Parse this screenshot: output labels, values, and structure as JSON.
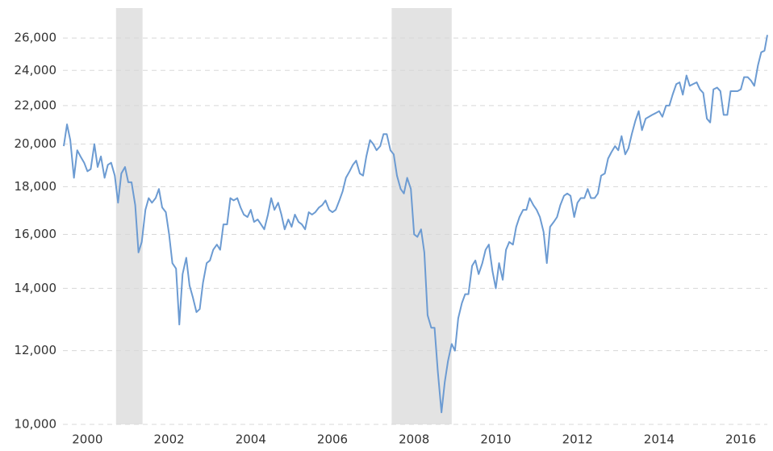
{
  "chart_data": {
    "type": "line",
    "color": "#6c9bd2",
    "log_scale": true,
    "grid": true,
    "shaded_ranges": [
      [
        2000.7,
        2001.35
      ],
      [
        2007.45,
        2008.92
      ]
    ],
    "xlim": [
      1999.4,
      2016.65
    ],
    "xticks": [
      2000,
      2002,
      2004,
      2006,
      2008,
      2010,
      2012,
      2014,
      2016
    ],
    "ylim": [
      10000,
      28000
    ],
    "yticks": [
      {
        "value": 10000,
        "label": "10,000"
      },
      {
        "value": 12000,
        "label": "12,000"
      },
      {
        "value": 14000,
        "label": "14,000"
      },
      {
        "value": 16000,
        "label": "16,000"
      },
      {
        "value": 18000,
        "label": "18,000"
      },
      {
        "value": 20000,
        "label": "20,000"
      },
      {
        "value": 22000,
        "label": "22,000"
      },
      {
        "value": 24000,
        "label": "24,000"
      },
      {
        "value": 26000,
        "label": "26,000"
      }
    ],
    "x": [
      1999.42,
      1999.5,
      1999.58,
      1999.67,
      1999.75,
      1999.83,
      1999.92,
      2000.0,
      2000.08,
      2000.17,
      2000.25,
      2000.33,
      2000.42,
      2000.5,
      2000.58,
      2000.67,
      2000.75,
      2000.83,
      2000.92,
      2001.0,
      2001.08,
      2001.17,
      2001.25,
      2001.33,
      2001.42,
      2001.5,
      2001.58,
      2001.67,
      2001.75,
      2001.83,
      2001.92,
      2002.0,
      2002.08,
      2002.17,
      2002.25,
      2002.33,
      2002.42,
      2002.5,
      2002.58,
      2002.67,
      2002.75,
      2002.83,
      2002.92,
      2003.0,
      2003.08,
      2003.17,
      2003.25,
      2003.33,
      2003.42,
      2003.5,
      2003.58,
      2003.67,
      2003.75,
      2003.83,
      2003.92,
      2004.0,
      2004.08,
      2004.17,
      2004.25,
      2004.33,
      2004.42,
      2004.5,
      2004.58,
      2004.67,
      2004.75,
      2004.83,
      2004.92,
      2005.0,
      2005.08,
      2005.17,
      2005.25,
      2005.33,
      2005.42,
      2005.5,
      2005.58,
      2005.67,
      2005.75,
      2005.83,
      2005.92,
      2006.0,
      2006.08,
      2006.17,
      2006.25,
      2006.33,
      2006.42,
      2006.5,
      2006.58,
      2006.67,
      2006.75,
      2006.83,
      2006.92,
      2007.0,
      2007.08,
      2007.17,
      2007.25,
      2007.33,
      2007.42,
      2007.5,
      2007.58,
      2007.67,
      2007.75,
      2007.83,
      2007.92,
      2008.0,
      2008.08,
      2008.17,
      2008.25,
      2008.33,
      2008.42,
      2008.5,
      2008.58,
      2008.67,
      2008.75,
      2008.83,
      2008.92,
      2009.0,
      2009.08,
      2009.17,
      2009.25,
      2009.33,
      2009.42,
      2009.5,
      2009.58,
      2009.67,
      2009.75,
      2009.83,
      2009.92,
      2010.0,
      2010.08,
      2010.17,
      2010.25,
      2010.33,
      2010.42,
      2010.5,
      2010.58,
      2010.67,
      2010.75,
      2010.83,
      2010.92,
      2011.0,
      2011.08,
      2011.17,
      2011.25,
      2011.33,
      2011.42,
      2011.5,
      2011.58,
      2011.67,
      2011.75,
      2011.83,
      2011.92,
      2012.0,
      2012.08,
      2012.17,
      2012.25,
      2012.33,
      2012.42,
      2012.5,
      2012.58,
      2012.67,
      2012.75,
      2012.83,
      2012.92,
      2013.0,
      2013.08,
      2013.17,
      2013.25,
      2013.33,
      2013.42,
      2013.5,
      2013.58,
      2013.67,
      2013.75,
      2013.83,
      2013.92,
      2014.0,
      2014.08,
      2014.17,
      2014.25,
      2014.33,
      2014.42,
      2014.5,
      2014.58,
      2014.67,
      2014.75,
      2014.83,
      2014.92,
      2015.0,
      2015.08,
      2015.17,
      2015.25,
      2015.33,
      2015.42,
      2015.5,
      2015.58,
      2015.67,
      2015.75,
      2015.83,
      2015.92,
      2016.0,
      2016.08,
      2016.17,
      2016.25,
      2016.33,
      2016.42,
      2016.5,
      2016.58,
      2016.65
    ],
    "values": [
      19900,
      21000,
      20200,
      18400,
      19700,
      19400,
      19100,
      18700,
      18800,
      20000,
      18900,
      19400,
      18400,
      19000,
      19100,
      18500,
      17300,
      18600,
      18900,
      18200,
      18200,
      17200,
      15300,
      15700,
      17000,
      17500,
      17300,
      17500,
      17900,
      17100,
      16900,
      16000,
      14900,
      14700,
      12800,
      14500,
      15100,
      14100,
      13700,
      13200,
      13300,
      14200,
      14900,
      15000,
      15400,
      15600,
      15400,
      16400,
      16400,
      17500,
      17400,
      17500,
      17100,
      16800,
      16700,
      17000,
      16500,
      16600,
      16400,
      16200,
      16800,
      17500,
      17000,
      17300,
      16800,
      16200,
      16600,
      16300,
      16800,
      16500,
      16400,
      16200,
      16900,
      16800,
      16900,
      17100,
      17200,
      17400,
      17000,
      16900,
      17000,
      17400,
      17800,
      18400,
      18700,
      19000,
      19200,
      18600,
      18500,
      19400,
      20200,
      20000,
      19700,
      19900,
      20500,
      20500,
      19700,
      19500,
      18500,
      17900,
      17700,
      18400,
      17900,
      16000,
      15900,
      16200,
      15300,
      13100,
      12700,
      12700,
      11400,
      10300,
      11100,
      11700,
      12200,
      12000,
      13000,
      13500,
      13800,
      13800,
      14800,
      15000,
      14500,
      14900,
      15400,
      15600,
      14600,
      14000,
      14900,
      14300,
      15400,
      15700,
      15600,
      16300,
      16700,
      17000,
      17000,
      17500,
      17200,
      17000,
      16700,
      16100,
      14900,
      16300,
      16500,
      16700,
      17200,
      17600,
      17700,
      17600,
      16700,
      17300,
      17500,
      17500,
      17900,
      17500,
      17500,
      17700,
      18500,
      18600,
      19300,
      19600,
      19900,
      19700,
      20400,
      19500,
      19800,
      20500,
      21200,
      21700,
      20700,
      21300,
      21400,
      21500,
      21600,
      21700,
      21400,
      22000,
      22000,
      22600,
      23200,
      23300,
      22600,
      23700,
      23100,
      23200,
      23300,
      22900,
      22700,
      21300,
      21100,
      22900,
      23000,
      22800,
      21500,
      21500,
      22800,
      22800,
      22800,
      22900,
      23600,
      23600,
      23400,
      23100,
      24300,
      25100,
      25200,
      26200
    ]
  }
}
